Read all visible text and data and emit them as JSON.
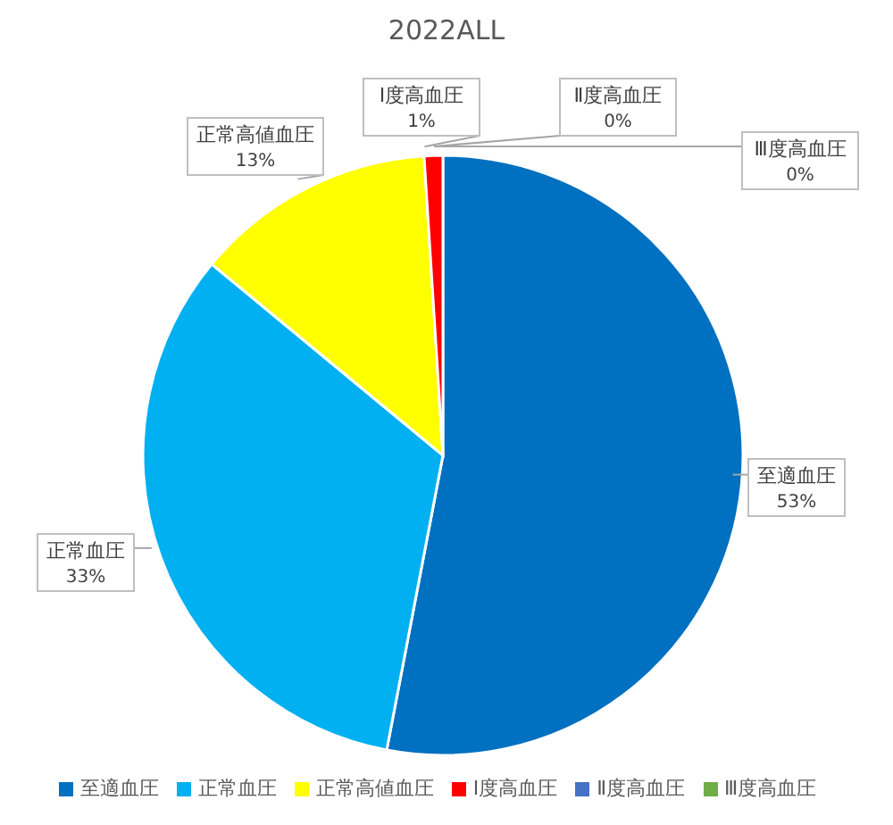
{
  "chart_data": {
    "type": "pie",
    "title": "2022ALL",
    "categories": [
      "至適血圧",
      "正常血圧",
      "正常高値血圧",
      "Ⅰ度高血圧",
      "Ⅱ度高血圧",
      "Ⅲ度高血圧"
    ],
    "values": [
      53,
      33,
      13,
      1,
      0,
      0
    ],
    "value_labels": [
      "53%",
      "33%",
      "13%",
      "1%",
      "0%",
      "0%"
    ],
    "colors": [
      "#0070c0",
      "#00b0f0",
      "#ffff00",
      "#ff0000",
      "#4472c4",
      "#70ad47"
    ],
    "legend": "bottom"
  }
}
